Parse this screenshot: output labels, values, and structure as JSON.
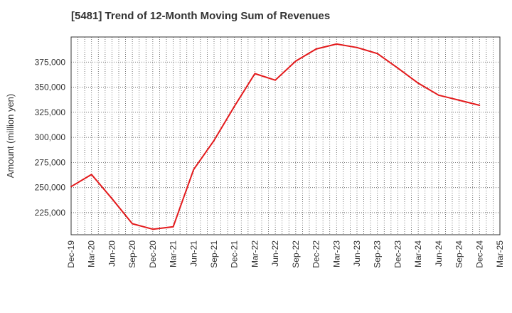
{
  "title": "[5481]  Trend of 12-Month Moving Sum of Revenues",
  "chart_data": {
    "type": "line",
    "title": "[5481]  Trend of 12-Month Moving Sum of Revenues",
    "xlabel": "",
    "ylabel": "Amount (million yen)",
    "ylim": [
      203000,
      400000
    ],
    "y_ticks": [
      225000,
      250000,
      275000,
      300000,
      325000,
      350000,
      375000
    ],
    "y_tick_labels": [
      "225,000",
      "250,000",
      "275,000",
      "300,000",
      "325,000",
      "350,000",
      "375,000"
    ],
    "x_tick_labels": [
      "Dec-19",
      "Mar-20",
      "Jun-20",
      "Sep-20",
      "Dec-20",
      "Mar-21",
      "Jun-21",
      "Sep-21",
      "Dec-21",
      "Mar-22",
      "Jun-22",
      "Sep-22",
      "Dec-22",
      "Mar-23",
      "Jun-23",
      "Sep-23",
      "Dec-23",
      "Mar-24",
      "Jun-24",
      "Sep-24",
      "Dec-24",
      "Mar-25"
    ],
    "x": [
      "Dec-19",
      "Mar-20",
      "Jun-20",
      "Sep-20",
      "Dec-20",
      "Mar-21",
      "Jun-21",
      "Sep-21",
      "Dec-21",
      "Mar-22",
      "Jun-22",
      "Sep-22",
      "Dec-22",
      "Mar-23",
      "Jun-23",
      "Sep-23",
      "Dec-23",
      "Mar-24",
      "Jun-24",
      "Sep-24",
      "Dec-24"
    ],
    "series": [
      {
        "name": "",
        "color": "#e31a1c",
        "values": [
          251000,
          263000,
          239000,
          214000,
          208500,
          211000,
          268000,
          297000,
          331000,
          363500,
          357000,
          376000,
          388000,
          393000,
          389500,
          383500,
          369000,
          354000,
          342000,
          337000,
          332000
        ]
      }
    ],
    "grid": true,
    "legend": "none"
  }
}
